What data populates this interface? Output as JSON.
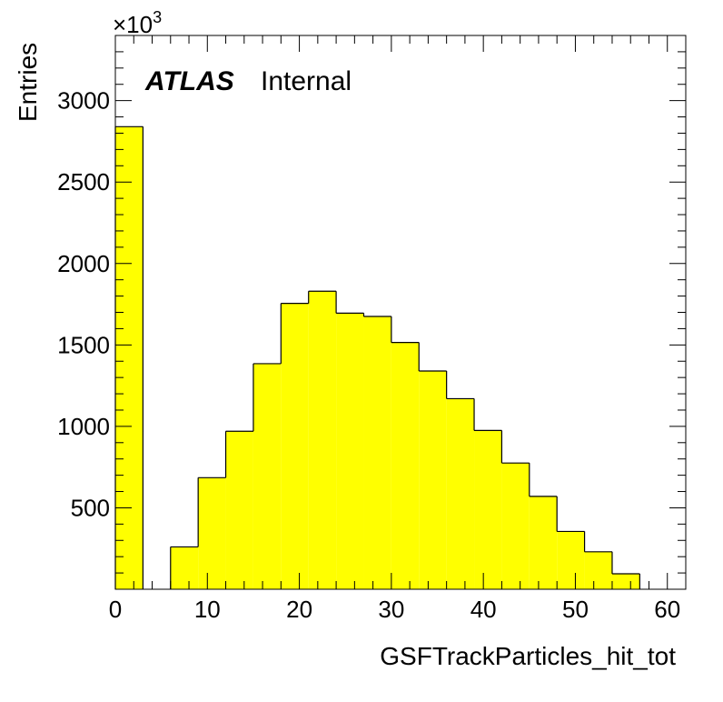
{
  "chart_data": {
    "type": "bar",
    "histogram": true,
    "bin_edges": [
      0,
      3,
      6,
      9,
      12,
      15,
      18,
      21,
      24,
      27,
      30,
      33,
      36,
      39,
      42,
      45,
      48,
      51,
      54,
      57,
      60
    ],
    "values": [
      2840,
      0,
      260,
      685,
      970,
      1385,
      1755,
      1830,
      1695,
      1675,
      1515,
      1340,
      1170,
      975,
      775,
      570,
      355,
      230,
      95,
      0
    ],
    "xlabel": "GSFTrackParticles_hit_tot",
    "ylabel": "Entries",
    "xlim": [
      0,
      62
    ],
    "ylim": [
      0,
      3400
    ],
    "x_ticks": [
      "0",
      "10",
      "20",
      "30",
      "40",
      "50",
      "60"
    ],
    "y_ticks": [
      "500",
      "1000",
      "1500",
      "2000",
      "2500",
      "3000"
    ],
    "y_multiplier": "×10",
    "y_multiplier_exp": "3",
    "fill_color": "#ffff00",
    "line_color": "#000000",
    "grid": false,
    "legend": "none",
    "label_bold": "ATLAS",
    "label_plain": "Internal"
  }
}
